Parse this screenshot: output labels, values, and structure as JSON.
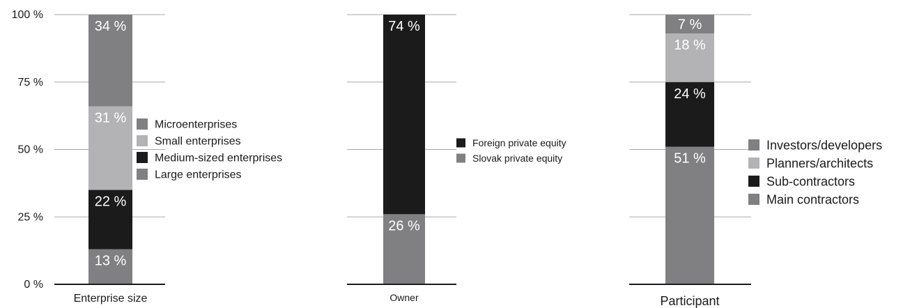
{
  "chart_data": {
    "type": "bar",
    "stacked": true,
    "ylim": [
      0,
      100
    ],
    "yticks": [
      "0 %",
      "25 %",
      "50 %",
      "75 %",
      "100 %"
    ],
    "grid": true,
    "colors": {
      "medium_gray": "#808083",
      "light_gray": "#b3b3b5",
      "black": "#1b1b1b",
      "axis": "#1a1a1a",
      "grid": "#aaaaaa"
    },
    "panels": [
      {
        "xlabel": "Enterprise size",
        "legend_position": "right",
        "segments": [
          {
            "name": "Large enterprises",
            "value": 13,
            "label": "13 %",
            "color": "#808083"
          },
          {
            "name": "Medium-sized enterprises",
            "value": 22,
            "label": "22 %",
            "color": "#1b1b1b"
          },
          {
            "name": "Small enterprises",
            "value": 31,
            "label": "31 %",
            "color": "#b3b3b5"
          },
          {
            "name": "Microenterprises",
            "value": 34,
            "label": "34 %",
            "color": "#808083"
          }
        ]
      },
      {
        "xlabel": "Owner",
        "legend_position": "right",
        "segments": [
          {
            "name": "Slovak private equity",
            "value": 26,
            "label": "26 %",
            "color": "#808083"
          },
          {
            "name": "Foreign private equity",
            "value": 74,
            "label": "74 %",
            "color": "#1b1b1b"
          }
        ]
      },
      {
        "xlabel": "Participant",
        "legend_position": "right",
        "segments": [
          {
            "name": "Main contractors",
            "value": 51,
            "label": "51 %",
            "color": "#808083"
          },
          {
            "name": "Sub-contractors",
            "value": 24,
            "label": "24 %",
            "color": "#1b1b1b"
          },
          {
            "name": "Planners/architects",
            "value": 18,
            "label": "18 %",
            "color": "#b3b3b5"
          },
          {
            "name": "Investors/developers",
            "value": 7,
            "label": "7 %",
            "color": "#808083"
          }
        ]
      }
    ]
  }
}
